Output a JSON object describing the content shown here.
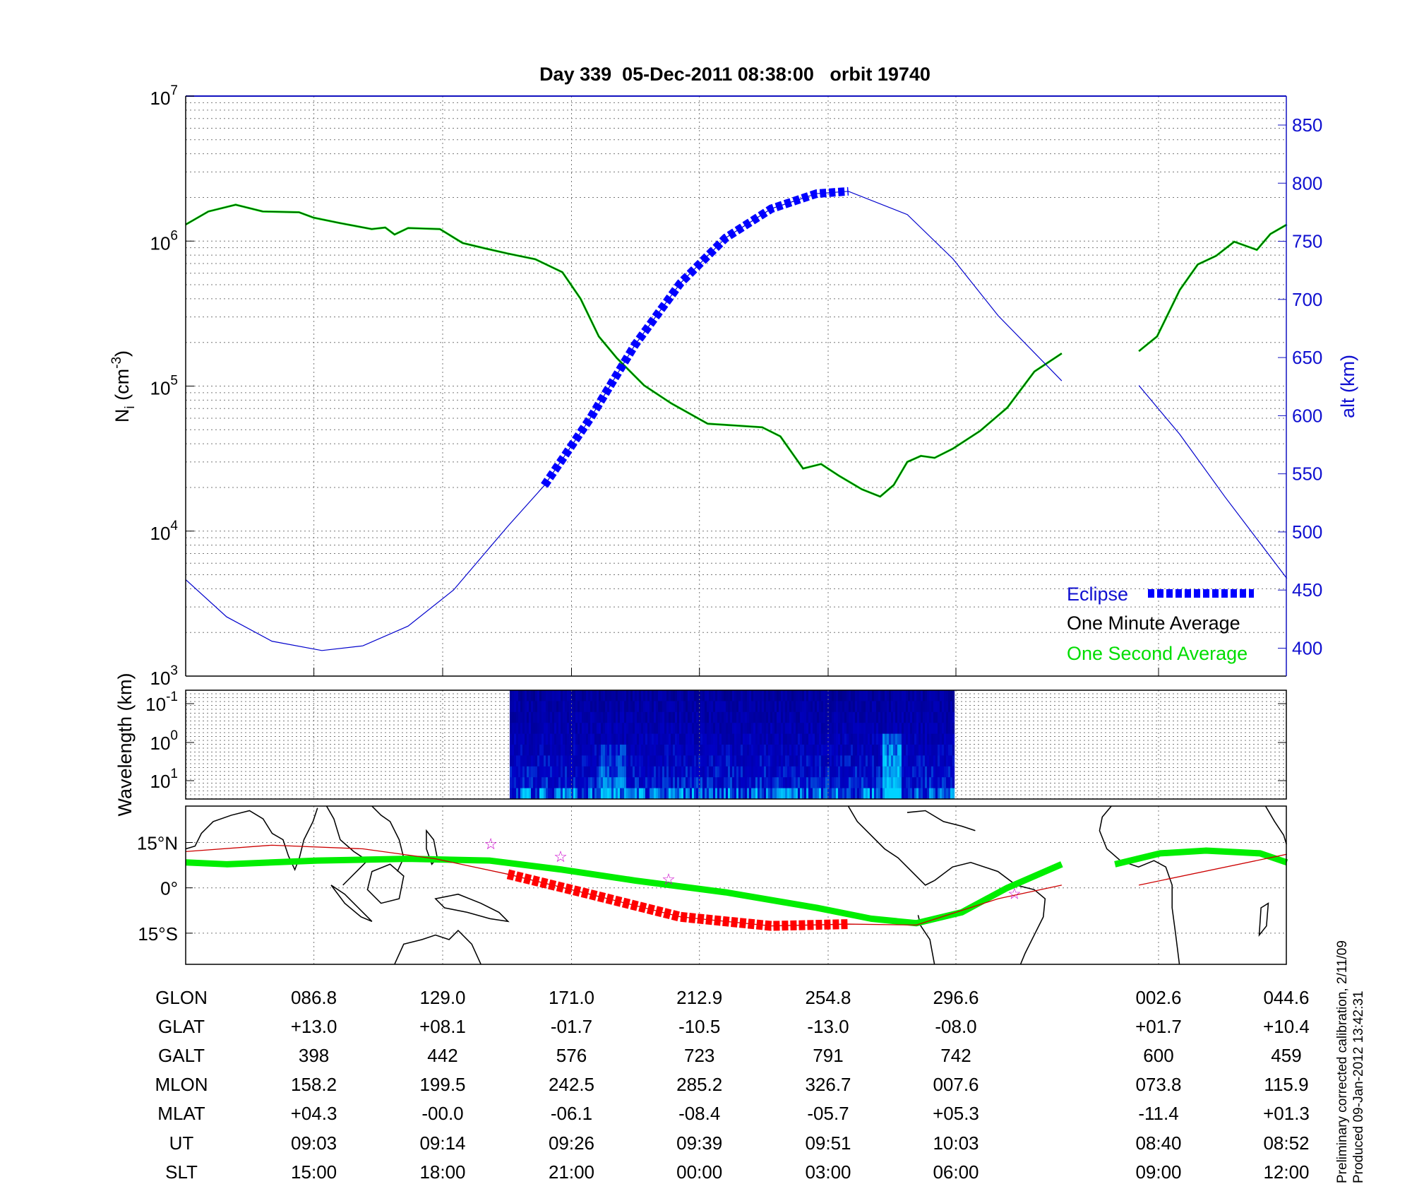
{
  "title": "Day 339  05-Dec-2011 08:38:00   orbit 19740",
  "density_axis": {
    "base": "N",
    "sub": "i",
    "unit": " (cm",
    "exp": "-3",
    "close": ")"
  },
  "altitude_axis": {
    "label": "alt (km)"
  },
  "spectrogram_axis": {
    "label": "Wavelength (km)"
  },
  "legend": {
    "eclipse": "Eclipse",
    "one_minute": "One Minute Average",
    "one_second": "One Second Average"
  },
  "footer": {
    "line1": "Preliminary corrected calibration, 2/11/09",
    "line2": "Produced 09-Jan-2012 13:42:31"
  },
  "colors": {
    "eclipse": "#0000ff",
    "altitude": "#0000cc",
    "one_minute": "#003300",
    "one_second": "#00ff00",
    "track": "#cc0000",
    "eclipse_track": "#ff0000",
    "magnetic_equator": "#00ee00",
    "stars": "#cc00cc"
  },
  "table": {
    "row_labels": [
      "GLON",
      "GLAT",
      "GALT",
      "MLON",
      "MLAT",
      "UT",
      "SLT"
    ],
    "columns": [
      [
        "086.8",
        "+13.0",
        "398",
        "158.2",
        "+04.3",
        "09:03",
        "15:00"
      ],
      [
        "129.0",
        "+08.1",
        "442",
        "199.5",
        "-00.0",
        "09:14",
        "18:00"
      ],
      [
        "171.0",
        "-01.7",
        "576",
        "242.5",
        "-06.1",
        "09:26",
        "21:00"
      ],
      [
        "212.9",
        "-10.5",
        "723",
        "285.2",
        "-08.4",
        "09:39",
        "00:00"
      ],
      [
        "254.8",
        "-13.0",
        "791",
        "326.7",
        "-05.7",
        "09:51",
        "03:00"
      ],
      [
        "296.6",
        "-08.0",
        "742",
        "007.6",
        "+05.3",
        "10:03",
        "06:00"
      ],
      [
        "002.6",
        "+01.7",
        "600",
        "073.8",
        "-11.4",
        "08:40",
        "09:00"
      ],
      [
        "044.6",
        "+10.4",
        "459",
        "115.9",
        "+01.3",
        "08:52",
        "12:00"
      ]
    ]
  },
  "chart_data": [
    {
      "type": "line",
      "title": "Day 339  05-Dec-2011 08:38:00   orbit 19740",
      "xlabel": "UT",
      "ylabel": "N_i (cm^-3)",
      "y_scale": "log",
      "ylim": [
        1000,
        10000000
      ],
      "y_ticks": [
        {
          "base": "10",
          "exp": "3"
        },
        {
          "base": "10",
          "exp": "4"
        },
        {
          "base": "10",
          "exp": "5"
        },
        {
          "base": "10",
          "exp": "6"
        },
        {
          "base": "10",
          "exp": "7"
        }
      ],
      "y2label": "alt (km)",
      "y2lim": [
        376,
        875
      ],
      "y2_ticks": [
        "400",
        "450",
        "500",
        "550",
        "600",
        "650",
        "700",
        "750",
        "800",
        "850"
      ],
      "grid": true,
      "legend_position": "bottom-right",
      "series": [
        {
          "name": "One Minute Average",
          "segments": [
            [
              [
                "08:51:03",
                1300000.0
              ],
              [
                "08:53:10",
                1600000.0
              ],
              [
                "08:55:43",
                1780000.0
              ],
              [
                "08:58:15",
                1600000.0
              ],
              [
                "09:01:38",
                1580000.0
              ],
              [
                "09:03:00",
                1450000.0
              ],
              [
                "09:05:28",
                1330000.0
              ],
              [
                "09:08:25",
                1210000.0
              ],
              [
                "09:09:41",
                1240000.0
              ],
              [
                "09:10:33",
                1110000.0
              ],
              [
                "09:11:49",
                1230000.0
              ],
              [
                "09:14:47",
                1210000.0
              ],
              [
                "09:16:54",
                970000.0
              ],
              [
                "09:19:01",
                890000.0
              ],
              [
                "09:21:08",
                820000.0
              ],
              [
                "09:23:41",
                750000.0
              ],
              [
                "09:26:13",
                610000.0
              ],
              [
                "09:27:55",
                400000.0
              ],
              [
                "09:29:37",
                220000.0
              ],
              [
                "09:31:18",
                156000.0
              ],
              [
                "09:33:51",
                101000.0
              ],
              [
                "09:36:23",
                76000.0
              ],
              [
                "09:39:47",
                55000.0
              ],
              [
                "09:44:52",
                52000.0
              ],
              [
                "09:46:34",
                45000.0
              ],
              [
                "09:48:41",
                27000.0
              ],
              [
                "09:50:22",
                29000.0
              ],
              [
                "09:52:04",
                24000.0
              ],
              [
                "09:54:11",
                19400.0
              ],
              [
                "09:55:53",
                17300.0
              ],
              [
                "09:57:09",
                20800.0
              ],
              [
                "09:58:25",
                30000.0
              ],
              [
                "09:59:41",
                33000.0
              ],
              [
                "10:00:58",
                32000.0
              ],
              [
                "10:02:40",
                37000.0
              ],
              [
                "10:05:12",
                49000.0
              ],
              [
                "10:07:45",
                71000.0
              ],
              [
                "10:10:17",
                126000.0
              ],
              [
                "10:12:50",
                168000.0
              ]
            ],
            [
              [
                "08:38:02",
                174000.0
              ],
              [
                "08:39:44",
                220000.0
              ],
              [
                "08:41:51",
                460000.0
              ],
              [
                "08:43:32",
                690000.0
              ],
              [
                "08:45:14",
                790000.0
              ],
              [
                "08:46:56",
                990000.0
              ],
              [
                "08:49:03",
                870000.0
              ],
              [
                "08:50:19",
                1120000.0
              ],
              [
                "08:51:51",
                1300000.0
              ]
            ]
          ]
        },
        {
          "name": "One Second Average",
          "same_as": "One Minute Average"
        },
        {
          "name": "alt (km)",
          "axis": "right",
          "segments": [
            [
              [
                "08:51:03",
                459
              ],
              [
                "08:54:52",
                427
              ],
              [
                "08:59:06",
                406
              ],
              [
                "09:03:46",
                398
              ],
              [
                "09:07:35",
                402
              ],
              [
                "09:11:49",
                419
              ],
              [
                "09:16:03",
                450
              ],
              [
                "09:21:08",
                505
              ],
              [
                "09:24:32",
                540
              ],
              [
                "09:28:46",
                597
              ],
              [
                "09:33:00",
                661
              ],
              [
                "09:37:14",
                714
              ],
              [
                "09:41:28",
                753
              ],
              [
                "09:45:43",
                778
              ],
              [
                "09:49:57",
                791
              ],
              [
                "09:52:55",
                793
              ],
              [
                "09:58:25",
                773
              ],
              [
                "10:02:40",
                735
              ],
              [
                "10:06:54",
                686
              ],
              [
                "10:12:50",
                630
              ]
            ],
            [
              [
                "08:38:02",
                626
              ],
              [
                "08:41:51",
                584
              ],
              [
                "08:46:05",
                530
              ],
              [
                "08:51:51",
                460
              ]
            ]
          ]
        }
      ],
      "eclipse": {
        "name": "Eclipse",
        "start": "09:21:23",
        "end": "09:52:55"
      }
    },
    {
      "type": "heatmap",
      "ylabel": "Wavelength (km)",
      "y_scale": "log",
      "y_ticks": [
        {
          "base": "10",
          "exp": "-1"
        },
        {
          "base": "10",
          "exp": "0"
        },
        {
          "base": "10",
          "exp": "1"
        }
      ],
      "data_range": {
        "start": "09:21:18",
        "end": "10:02:40"
      }
    },
    {
      "type": "line",
      "y_ticks": [
        "15°N",
        "0°",
        "15°S"
      ],
      "series": [
        {
          "name": "track",
          "segments": [
            [
              [
                "08:51:03",
                12.0
              ],
              [
                "08:59:06",
                14.1
              ],
              [
                "09:07:35",
                12.9
              ],
              [
                "09:14:22",
                9.6
              ],
              [
                "09:21:08",
                4.5
              ],
              [
                "09:28:46",
                -2.1
              ],
              [
                "09:37:14",
                -9.6
              ],
              [
                "09:45:43",
                -12.6
              ],
              [
                "09:52:55",
                -12.0
              ],
              [
                "09:59:16",
                -12.3
              ],
              [
                "10:06:54",
                -3.6
              ],
              [
                "10:12:50",
                0.9
              ]
            ],
            [
              [
                "08:38:02",
                0.9
              ],
              [
                "08:51:51",
                11.1
              ]
            ]
          ]
        },
        {
          "name": "magnetic_equator",
          "segments": [
            [
              [
                "08:51:03",
                8.4
              ],
              [
                "08:54:52",
                7.8
              ],
              [
                "09:03:21",
                9.0
              ],
              [
                "09:11:49",
                9.6
              ],
              [
                "09:19:27",
                9.0
              ],
              [
                "09:26:13",
                6.0
              ],
              [
                "09:33:00",
                2.4
              ],
              [
                "09:41:28",
                -1.5
              ],
              [
                "09:49:57",
                -6.6
              ],
              [
                "09:55:02",
                -10.2
              ],
              [
                "09:59:16",
                -11.7
              ],
              [
                "10:03:30",
                -8.1
              ],
              [
                "10:07:45",
                -0.0
              ],
              [
                "10:12:50",
                7.8
              ]
            ],
            [
              [
                "08:35:48",
                7.8
              ],
              [
                "08:40:02",
                11.4
              ],
              [
                "08:44:16",
                12.3
              ],
              [
                "08:49:21",
                11.4
              ],
              [
                "08:51:51",
                8.4
              ]
            ]
          ]
        }
      ],
      "eclipse_track": {
        "start": "09:21:23",
        "end": "09:52:55"
      },
      "stars": [
        [
          "09:19:32",
          14.7
        ],
        [
          "09:26:03",
          10.5
        ],
        [
          "09:36:08",
          3.0
        ],
        [
          "10:08:25",
          -1.8
        ]
      ]
    }
  ]
}
